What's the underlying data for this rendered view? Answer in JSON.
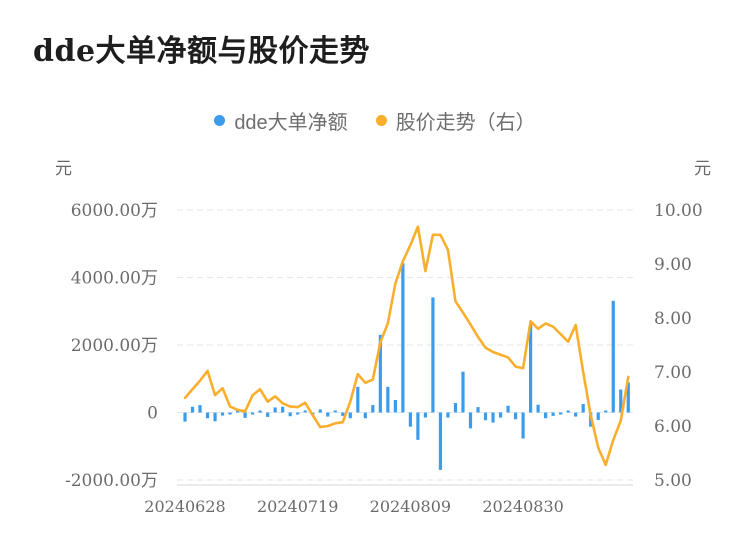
{
  "title": "dde大单净额与股价走势",
  "legend": [
    {
      "label": "dde大单净额",
      "color": "#3B9CEC"
    },
    {
      "label": "股价走势（右）",
      "color": "#F9AF2D"
    }
  ],
  "colors": {
    "bar": "#3B9CEC",
    "line": "#F9AF2D",
    "grid": "#e6e6e6",
    "zero_line": "#dde5ee",
    "axis_line": "#d5d5d5",
    "tick_text": "#6b6b6b",
    "title_text": "#1e1e1e"
  },
  "left_axis": {
    "unit": "元",
    "tick_labels": [
      "6000.00万",
      "4000.00万",
      "2000.00万",
      "0",
      "-2000.00万"
    ],
    "range": [
      -2000,
      6000
    ],
    "tick_values": [
      6000,
      4000,
      2000,
      0,
      -2000
    ]
  },
  "right_axis": {
    "unit": "元",
    "tick_labels": [
      "10.00",
      "9.00",
      "8.00",
      "7.00",
      "6.00",
      "5.00"
    ],
    "range": [
      5.0,
      10.0
    ],
    "tick_values": [
      10.0,
      9.0,
      8.0,
      7.0,
      6.0,
      5.0
    ]
  },
  "x_axis": {
    "tick_labels": [
      "20240628",
      "20240719",
      "20240809",
      "20240830"
    ],
    "tick_indices": [
      0,
      15,
      30,
      45
    ]
  },
  "chart_data": {
    "type": "bar+line",
    "title": "dde大单净额与股价走势",
    "grid": "horizontal-dashed",
    "legend_position": "top-center",
    "x": [
      "20240628",
      "20240701",
      "20240702",
      "20240703",
      "20240704",
      "20240705",
      "20240708",
      "20240709",
      "20240710",
      "20240711",
      "20240712",
      "20240715",
      "20240716",
      "20240717",
      "20240718",
      "20240719",
      "20240722",
      "20240723",
      "20240724",
      "20240725",
      "20240726",
      "20240729",
      "20240730",
      "20240731",
      "20240801",
      "20240802",
      "20240805",
      "20240806",
      "20240807",
      "20240808",
      "20240809",
      "20240812",
      "20240813",
      "20240814",
      "20240815",
      "20240816",
      "20240819",
      "20240820",
      "20240821",
      "20240822",
      "20240823",
      "20240826",
      "20240827",
      "20240828",
      "20240829",
      "20240830",
      "20240902",
      "20240903",
      "20240904",
      "20240905",
      "20240906",
      "20240909",
      "20240910",
      "20240911",
      "20240912",
      "20240913",
      "20240918",
      "20240919",
      "20240920",
      "20240923"
    ],
    "series": [
      {
        "name": "dde大单净额",
        "type": "bar",
        "axis": "left",
        "unit": "万元",
        "color": "#3B9CEC",
        "values": [
          -270,
          170,
          220,
          -170,
          -260,
          -90,
          -60,
          60,
          -160,
          -60,
          60,
          -130,
          150,
          170,
          -110,
          -60,
          60,
          -80,
          90,
          -120,
          60,
          -100,
          -170,
          760,
          -170,
          220,
          2300,
          760,
          370,
          4420,
          -420,
          -810,
          -150,
          3410,
          -1700,
          -150,
          280,
          1210,
          -470,
          160,
          -230,
          -300,
          -150,
          200,
          -200,
          -770,
          2660,
          230,
          -170,
          -100,
          -60,
          60,
          -120,
          250,
          -420,
          -220,
          60,
          3310,
          680,
          890
        ]
      },
      {
        "name": "股价走势（右）",
        "type": "line",
        "axis": "right",
        "unit": "元",
        "color": "#F9AF2D",
        "values": [
          6.52,
          6.68,
          6.84,
          7.02,
          6.57,
          6.7,
          6.36,
          6.3,
          6.27,
          6.57,
          6.68,
          6.45,
          6.55,
          6.42,
          6.36,
          6.35,
          6.43,
          6.2,
          5.98,
          6.0,
          6.05,
          6.07,
          6.45,
          6.96,
          6.8,
          6.86,
          7.55,
          7.9,
          8.64,
          9.05,
          9.35,
          9.69,
          8.87,
          9.54,
          9.54,
          9.26,
          8.31,
          8.1,
          7.88,
          7.65,
          7.45,
          7.37,
          7.32,
          7.27,
          7.1,
          7.07,
          7.94,
          7.8,
          7.9,
          7.84,
          7.7,
          7.56,
          7.87,
          7.0,
          6.2,
          5.6,
          5.28,
          5.74,
          6.1,
          6.91
        ]
      }
    ]
  }
}
